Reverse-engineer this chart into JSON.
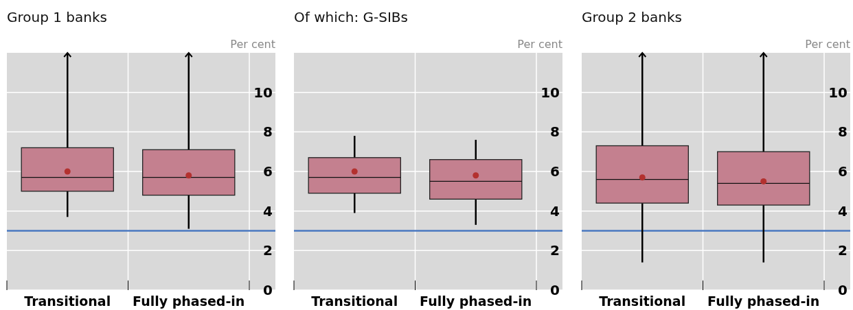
{
  "chart_data": [
    {
      "type": "box",
      "title": "Group 1 banks",
      "ylabel": "Per cent",
      "categories": [
        "Transitional",
        "Fully phased-in"
      ],
      "color": "#c4808f",
      "ylim": [
        0,
        12
      ],
      "yticks": [
        0,
        2,
        4,
        6,
        8,
        10
      ],
      "grid": true,
      "boxes": [
        {
          "low": 3.7,
          "q1": 5.0,
          "median": 5.7,
          "q3": 7.2,
          "high": 12,
          "mean": 6.0
        },
        {
          "low": 3.1,
          "q1": 4.8,
          "median": 5.7,
          "q3": 7.1,
          "high": 12,
          "mean": 5.8
        }
      ],
      "ref_lines": [
        {
          "axis": "y",
          "value": 3,
          "color": "#4a78c0"
        }
      ]
    },
    {
      "type": "box",
      "title": "Of which: G-SIBs",
      "ylabel": "Per cent",
      "categories": [
        "Transitional",
        "Fully phased-in"
      ],
      "color": "#c4808f",
      "ylim": [
        0,
        12
      ],
      "yticks": [
        0,
        2,
        4,
        6,
        8,
        10
      ],
      "grid": true,
      "boxes": [
        {
          "low": 3.9,
          "q1": 4.9,
          "median": 5.7,
          "q3": 6.7,
          "high": 7.8,
          "mean": 6.0
        },
        {
          "low": 3.3,
          "q1": 4.6,
          "median": 5.5,
          "q3": 6.6,
          "high": 7.6,
          "mean": 5.8
        }
      ],
      "ref_lines": [
        {
          "axis": "y",
          "value": 3,
          "color": "#4a78c0"
        }
      ]
    },
    {
      "type": "box",
      "title": "Group 2 banks",
      "ylabel": "Per cent",
      "categories": [
        "Transitional",
        "Fully phased-in"
      ],
      "color": "#c4808f",
      "ylim": [
        0,
        12
      ],
      "yticks": [
        0,
        2,
        4,
        6,
        8,
        10
      ],
      "grid": true,
      "boxes": [
        {
          "low": 1.4,
          "q1": 4.4,
          "median": 5.6,
          "q3": 7.3,
          "high": 12,
          "mean": 5.7
        },
        {
          "low": 1.4,
          "q1": 4.3,
          "median": 5.4,
          "q3": 7.0,
          "high": 12,
          "mean": 5.5
        }
      ],
      "ref_lines": [
        {
          "axis": "y",
          "value": 3,
          "color": "#4a78c0"
        }
      ]
    }
  ]
}
